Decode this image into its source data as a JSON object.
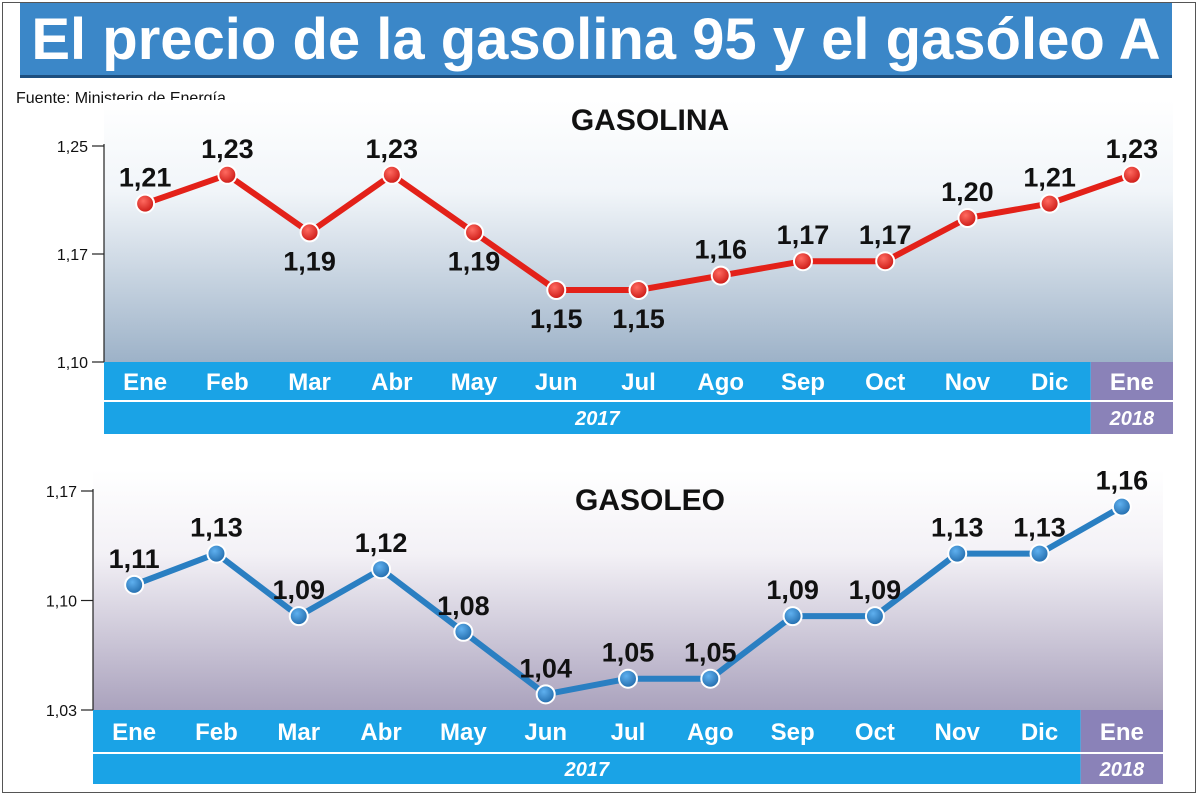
{
  "header": {
    "title": "El precio de la gasolina 95 y el gasóleo A"
  },
  "source": "Fuente: Ministerio de Energía",
  "colors": {
    "header_bg": "#3b87c8",
    "axis_band_2017": "#1aa3e6",
    "axis_band_2018": "#8a82b8",
    "gasolina_line": "#e32119",
    "gasoleo_line": "#2a7fc2"
  },
  "chart_data": [
    {
      "type": "line",
      "title": "GASOLINA",
      "categories": [
        "Ene",
        "Feb",
        "Mar",
        "Abr",
        "May",
        "Jun",
        "Jul",
        "Ago",
        "Sep",
        "Oct",
        "Nov",
        "Dic",
        "Ene"
      ],
      "years": [
        {
          "label": "2017",
          "span": 12
        },
        {
          "label": "2018",
          "span": 1
        }
      ],
      "yticks": [
        "1,25",
        "1,17",
        "1,10"
      ],
      "ylim": [
        1.1,
        1.25
      ],
      "grid": false,
      "series": [
        {
          "values": [
            1.21,
            1.23,
            1.19,
            1.23,
            1.19,
            1.15,
            1.15,
            1.16,
            1.17,
            1.17,
            1.2,
            1.21,
            1.23
          ],
          "labels": [
            "1,21",
            "1,23",
            "1,19",
            "1,23",
            "1,19",
            "1,15",
            "1,15",
            "1,16",
            "1,17",
            "1,17",
            "1,20",
            "1,21",
            "1,23"
          ]
        }
      ]
    },
    {
      "type": "line",
      "title": "GASOLEO",
      "categories": [
        "Ene",
        "Feb",
        "Mar",
        "Abr",
        "May",
        "Jun",
        "Jul",
        "Ago",
        "Sep",
        "Oct",
        "Nov",
        "Dic",
        "Ene"
      ],
      "years": [
        {
          "label": "2017",
          "span": 12
        },
        {
          "label": "2018",
          "span": 1
        }
      ],
      "yticks": [
        "1,17",
        "1,10",
        "1,03"
      ],
      "ylim": [
        1.03,
        1.17
      ],
      "grid": false,
      "series": [
        {
          "values": [
            1.11,
            1.13,
            1.09,
            1.12,
            1.08,
            1.04,
            1.05,
            1.05,
            1.09,
            1.09,
            1.13,
            1.13,
            1.16
          ],
          "labels": [
            "1,11",
            "1,13",
            "1,09",
            "1,12",
            "1,08",
            "1,04",
            "1,05",
            "1,05",
            "1,09",
            "1,09",
            "1,13",
            "1,13",
            "1,16"
          ]
        }
      ]
    }
  ]
}
